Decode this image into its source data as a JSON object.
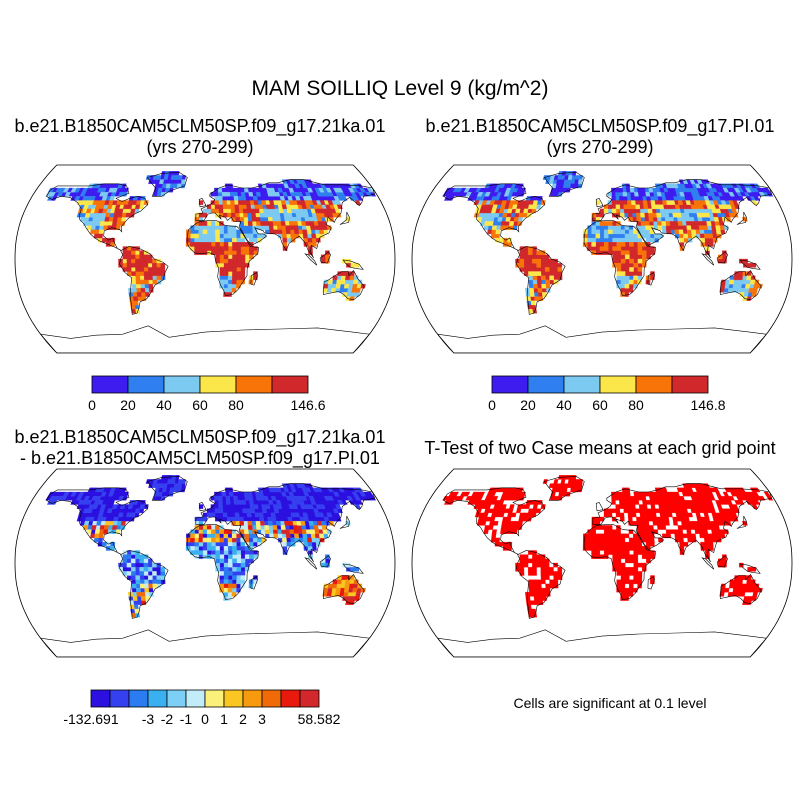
{
  "title": "MAM SOILLIQ Level 9 (kg/m^2)",
  "chart_data": [
    {
      "type": "heatmap",
      "projection": "robinson",
      "title_line1": "b.e21.B1850CAM5CLM50SP.f09_g17.21ka.01",
      "title_line2": "(yrs 270-299)",
      "colorbar": {
        "colors": [
          "#3e1cf0",
          "#2f7ff0",
          "#7cc9f2",
          "#fbe74a",
          "#f87408",
          "#d1282c"
        ],
        "tick_labels": [
          "0",
          "20",
          "40",
          "60",
          "80",
          "146.6"
        ]
      }
    },
    {
      "type": "heatmap",
      "projection": "robinson",
      "title_line1": "b.e21.B1850CAM5CLM50SP.f09_g17.PI.01",
      "title_line2": "(yrs 270-299)",
      "colorbar": {
        "colors": [
          "#3e1cf0",
          "#2f7ff0",
          "#7cc9f2",
          "#fbe74a",
          "#f87408",
          "#d1282c"
        ],
        "tick_labels": [
          "0",
          "20",
          "40",
          "60",
          "80",
          "146.8"
        ]
      }
    },
    {
      "type": "heatmap",
      "projection": "robinson",
      "title_line1": "b.e21.B1850CAM5CLM50SP.f09_g17.21ka.01",
      "title_line2": "- b.e21.B1850CAM5CLM50SP.f09_g17.PI.01",
      "colorbar": {
        "colors": [
          "#2b10e0",
          "#3540f0",
          "#2a7cf0",
          "#3ab0f0",
          "#7cd0f5",
          "#c2ecfa",
          "#fbf07a",
          "#fbc522",
          "#f89a0e",
          "#f06a08",
          "#e81a0c",
          "#d2282c"
        ],
        "tick_labels": [
          "-132.691",
          "-3",
          "-2",
          "-1",
          "0",
          "1",
          "2",
          "3",
          "58.582"
        ]
      }
    },
    {
      "type": "heatmap",
      "projection": "robinson",
      "title_line1": "T-Test of two Case means at each grid point",
      "title_line2": "",
      "significance_color": "#ff0000",
      "note": "Cells are significant at 0.1 level"
    }
  ]
}
